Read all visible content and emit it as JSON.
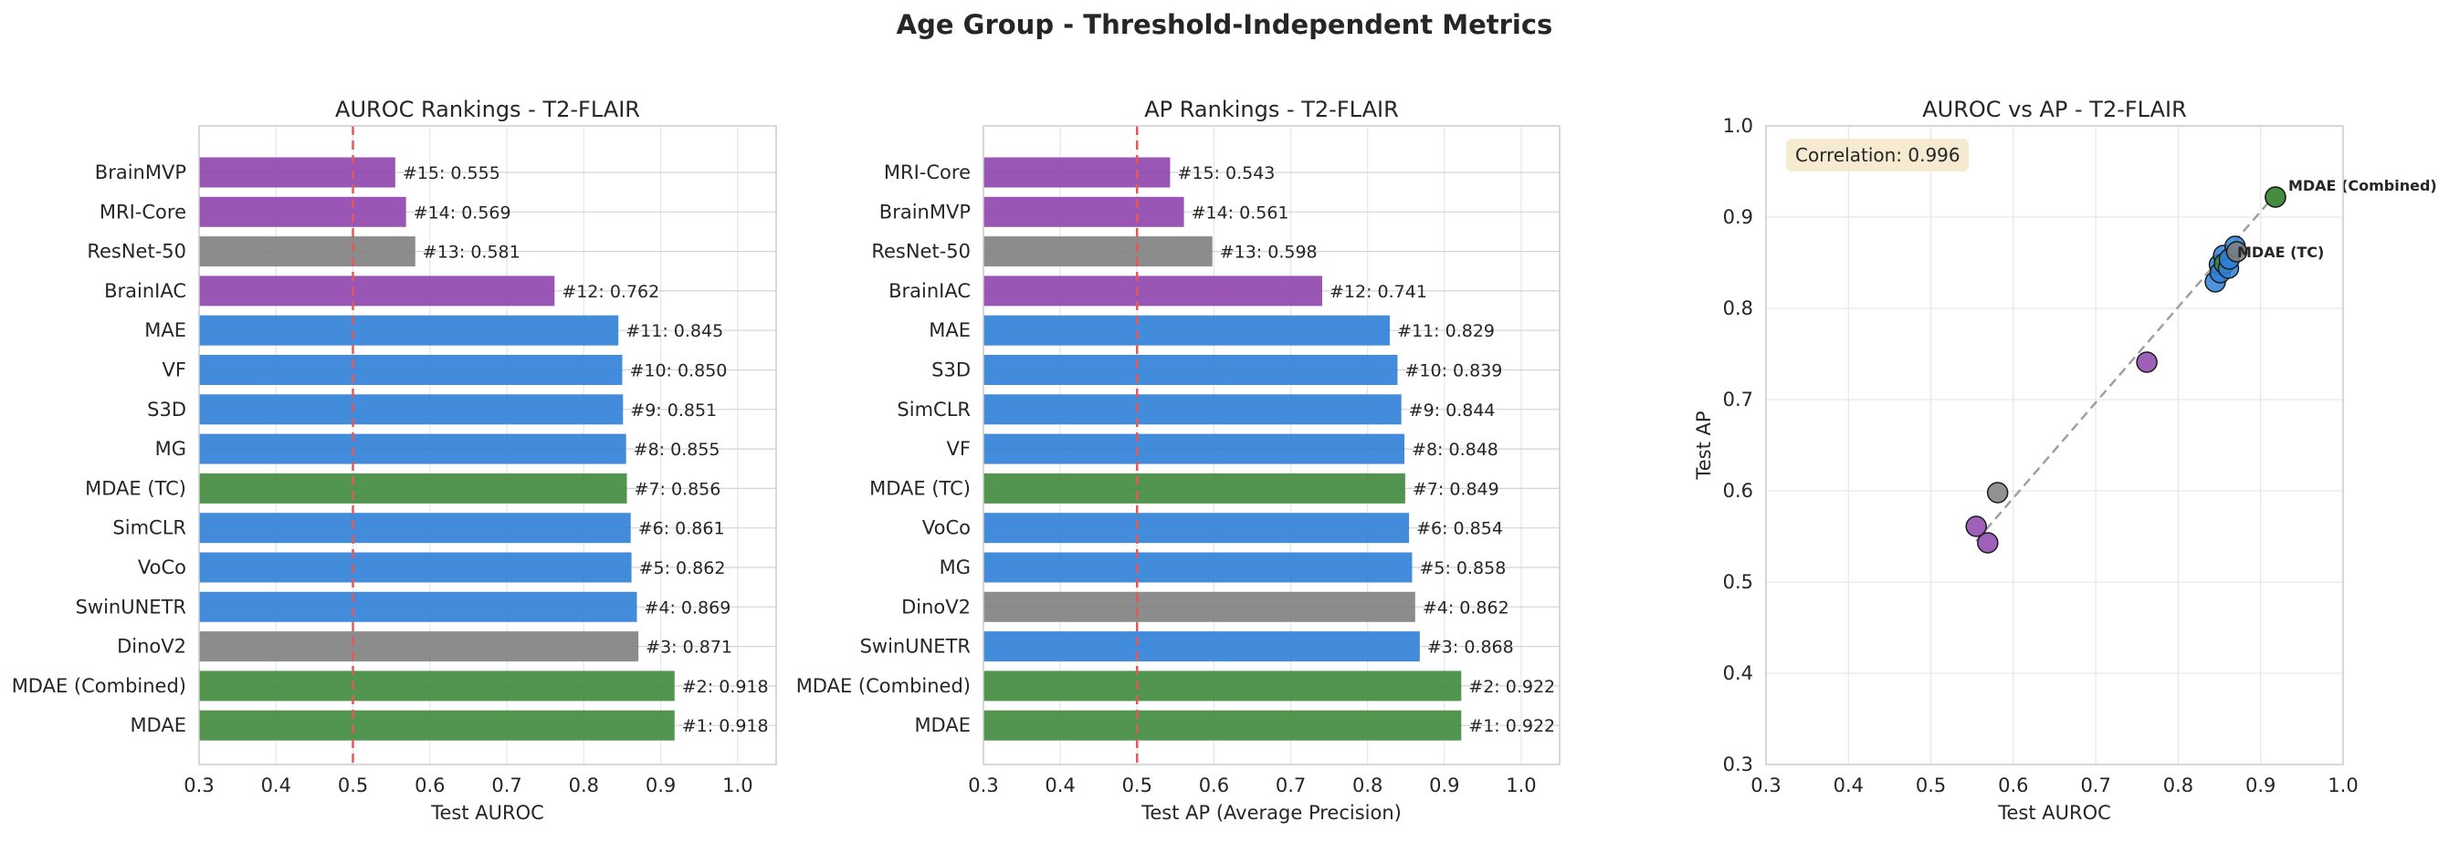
{
  "figure": {
    "suptitle": "Age Group - Threshold-Independent Metrics"
  },
  "colors": {
    "purple": "#8e44ad",
    "gray": "#7f7f7f",
    "blue": "#2f80d8",
    "green": "#3f8a3c",
    "threshold_line": "#e05a5a",
    "fit_line": "#a0a0a0",
    "annotation_box": "#f5e6c8",
    "grid": "#e6e6e6",
    "spine": "#cccccc"
  },
  "chart_data": [
    {
      "type": "bar",
      "orientation": "horizontal",
      "title": "AUROC Rankings - T2-FLAIR",
      "xlabel": "Test AUROC",
      "ylabel": "",
      "xlim": [
        0.3,
        1.05
      ],
      "xticks": [
        "0.3",
        "0.4",
        "0.5",
        "0.6",
        "0.7",
        "0.8",
        "0.9",
        "1.0"
      ],
      "reference_line": 0.5,
      "grid": true,
      "categories": [
        "BrainMVP",
        "MRI-Core",
        "ResNet-50",
        "BrainIAC",
        "MAE",
        "VF",
        "S3D",
        "MG",
        "MDAE (TC)",
        "SimCLR",
        "VoCo",
        "SwinUNETR",
        "DinoV2",
        "MDAE (Combined)",
        "MDAE"
      ],
      "values": [
        0.555,
        0.569,
        0.581,
        0.762,
        0.845,
        0.85,
        0.851,
        0.855,
        0.856,
        0.861,
        0.862,
        0.869,
        0.871,
        0.918,
        0.918
      ],
      "data_labels": [
        "#15: 0.555",
        "#14: 0.569",
        "#13: 0.581",
        "#12: 0.762",
        "#11: 0.845",
        "#10: 0.850",
        "#9: 0.851",
        "#8: 0.855",
        "#7: 0.856",
        "#6: 0.861",
        "#5: 0.862",
        "#4: 0.869",
        "#3: 0.871",
        "#2: 0.918",
        "#1: 0.918"
      ],
      "bar_colors": [
        "purple",
        "purple",
        "gray",
        "purple",
        "blue",
        "blue",
        "blue",
        "blue",
        "green",
        "blue",
        "blue",
        "blue",
        "gray",
        "green",
        "green"
      ]
    },
    {
      "type": "bar",
      "orientation": "horizontal",
      "title": "AP Rankings - T2-FLAIR",
      "xlabel": "Test AP (Average Precision)",
      "ylabel": "",
      "xlim": [
        0.3,
        1.05
      ],
      "xticks": [
        "0.3",
        "0.4",
        "0.5",
        "0.6",
        "0.7",
        "0.8",
        "0.9",
        "1.0"
      ],
      "reference_line": 0.5,
      "grid": true,
      "categories": [
        "MRI-Core",
        "BrainMVP",
        "ResNet-50",
        "BrainIAC",
        "MAE",
        "S3D",
        "SimCLR",
        "VF",
        "MDAE (TC)",
        "VoCo",
        "MG",
        "DinoV2",
        "SwinUNETR",
        "MDAE (Combined)",
        "MDAE"
      ],
      "values": [
        0.543,
        0.561,
        0.598,
        0.741,
        0.829,
        0.839,
        0.844,
        0.848,
        0.849,
        0.854,
        0.858,
        0.862,
        0.868,
        0.922,
        0.922
      ],
      "data_labels": [
        "#15: 0.543",
        "#14: 0.561",
        "#13: 0.598",
        "#12: 0.741",
        "#11: 0.829",
        "#10: 0.839",
        "#9: 0.844",
        "#8: 0.848",
        "#7: 0.849",
        "#6: 0.854",
        "#5: 0.858",
        "#4: 0.862",
        "#3: 0.868",
        "#2: 0.922",
        "#1: 0.922"
      ],
      "bar_colors": [
        "purple",
        "purple",
        "gray",
        "purple",
        "blue",
        "blue",
        "blue",
        "blue",
        "green",
        "blue",
        "blue",
        "gray",
        "blue",
        "green",
        "green"
      ]
    },
    {
      "type": "scatter",
      "title": "AUROC vs AP - T2-FLAIR",
      "xlabel": "Test AUROC",
      "ylabel": "Test AP",
      "xlim": [
        0.3,
        1.0
      ],
      "ylim": [
        0.3,
        1.0
      ],
      "xticks": [
        "0.3",
        "0.4",
        "0.5",
        "0.6",
        "0.7",
        "0.8",
        "0.9",
        "1.0"
      ],
      "yticks": [
        "0.3",
        "0.4",
        "0.5",
        "0.6",
        "0.7",
        "0.8",
        "0.9",
        "1.0"
      ],
      "grid": true,
      "annotation": "Correlation: 0.996",
      "fit_line": {
        "x": [
          0.555,
          0.918
        ],
        "y": [
          0.545,
          0.925
        ]
      },
      "points": [
        {
          "model": "BrainMVP",
          "x": 0.555,
          "y": 0.561,
          "color": "purple"
        },
        {
          "model": "MRI-Core",
          "x": 0.569,
          "y": 0.543,
          "color": "purple"
        },
        {
          "model": "ResNet-50",
          "x": 0.581,
          "y": 0.598,
          "color": "gray"
        },
        {
          "model": "BrainIAC",
          "x": 0.762,
          "y": 0.741,
          "color": "purple"
        },
        {
          "model": "MAE",
          "x": 0.845,
          "y": 0.829,
          "color": "blue"
        },
        {
          "model": "VF",
          "x": 0.85,
          "y": 0.848,
          "color": "blue"
        },
        {
          "model": "S3D",
          "x": 0.851,
          "y": 0.839,
          "color": "blue"
        },
        {
          "model": "MG",
          "x": 0.855,
          "y": 0.858,
          "color": "blue"
        },
        {
          "model": "MDAE (TC)",
          "x": 0.856,
          "y": 0.849,
          "color": "green"
        },
        {
          "model": "SimCLR",
          "x": 0.861,
          "y": 0.844,
          "color": "blue"
        },
        {
          "model": "VoCo",
          "x": 0.862,
          "y": 0.854,
          "color": "blue"
        },
        {
          "model": "SwinUNETR",
          "x": 0.869,
          "y": 0.868,
          "color": "blue"
        },
        {
          "model": "DinoV2",
          "x": 0.871,
          "y": 0.862,
          "color": "gray"
        },
        {
          "model": "MDAE (Combined)",
          "x": 0.918,
          "y": 0.922,
          "color": "green"
        },
        {
          "model": "MDAE",
          "x": 0.918,
          "y": 0.922,
          "color": "green"
        }
      ],
      "point_labels": [
        {
          "text": "MDAE (Combined)",
          "x": 0.918,
          "y": 0.922
        },
        {
          "text": "MDAE (TC)",
          "x": 0.856,
          "y": 0.849
        }
      ]
    }
  ]
}
